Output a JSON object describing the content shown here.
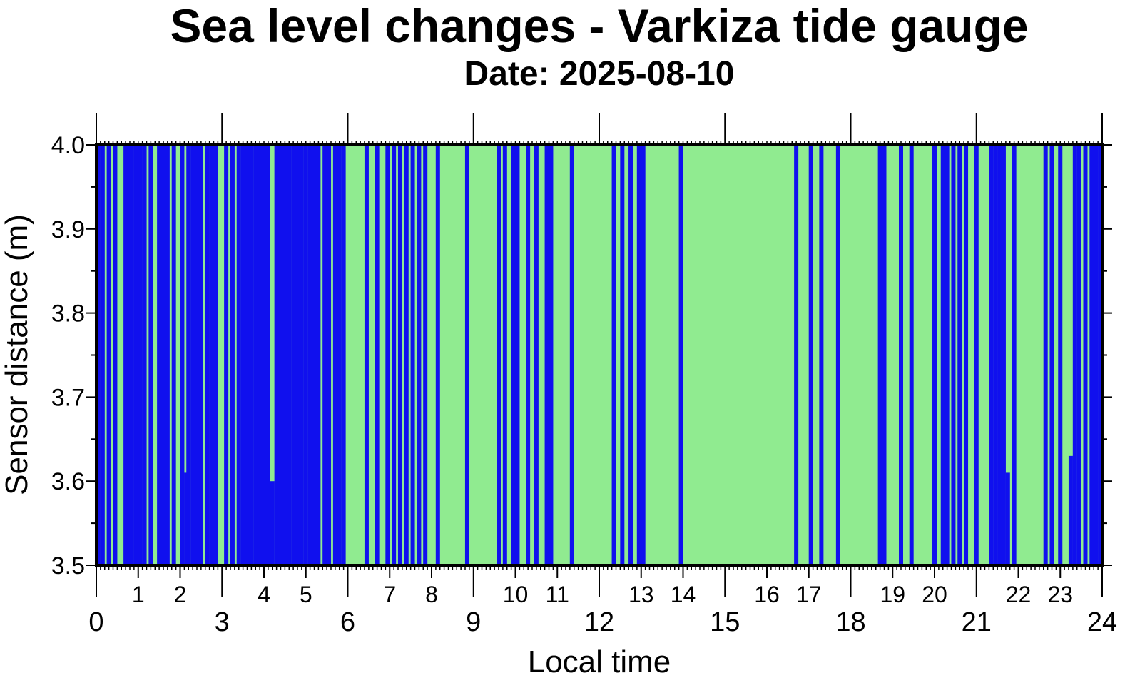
{
  "chart_data": {
    "type": "bar",
    "title": "Sea level changes - Varkiza tide gauge",
    "subtitle": "Date: 2025-08-10",
    "xlabel": "Local time",
    "ylabel": "Sensor distance (m)",
    "xlim": [
      0,
      24
    ],
    "ylim": [
      3.5,
      4.0
    ],
    "y_ticks": [
      "3.5",
      "3.6",
      "3.7",
      "3.8",
      "3.9",
      "4.0"
    ],
    "x_major_ticks": [
      "0",
      "3",
      "6",
      "9",
      "12",
      "15",
      "18",
      "21",
      "24"
    ],
    "x_minor_ticks": [
      "1",
      "2",
      "4",
      "5",
      "7",
      "8",
      "10",
      "11",
      "13",
      "14",
      "16",
      "17",
      "19",
      "20",
      "22",
      "23"
    ],
    "background_color": "#90EB90",
    "series_color": "#1010EE",
    "grid": false,
    "series": [
      {
        "bars": [
          {
            "x": 0.05,
            "y": 4.0
          },
          {
            "x": 0.15,
            "y": 4.0
          },
          {
            "x": 0.3,
            "y": 4.0
          },
          {
            "x": 0.45,
            "y": 4.0
          },
          {
            "x": 0.7,
            "y": 4.0
          },
          {
            "x": 0.75,
            "y": 4.0
          },
          {
            "x": 0.85,
            "y": 4.0
          },
          {
            "x": 0.95,
            "y": 4.0
          },
          {
            "x": 1.05,
            "y": 4.0
          },
          {
            "x": 1.15,
            "y": 4.0
          },
          {
            "x": 1.3,
            "y": 4.0
          },
          {
            "x": 1.5,
            "y": 4.0
          },
          {
            "x": 1.6,
            "y": 4.0
          },
          {
            "x": 1.7,
            "y": 4.0
          },
          {
            "x": 1.85,
            "y": 4.0
          },
          {
            "x": 2.05,
            "y": 4.0
          },
          {
            "x": 2.15,
            "y": 3.61
          },
          {
            "x": 2.2,
            "y": 4.0
          },
          {
            "x": 2.3,
            "y": 4.0
          },
          {
            "x": 2.4,
            "y": 4.0
          },
          {
            "x": 2.5,
            "y": 4.0
          },
          {
            "x": 2.65,
            "y": 4.0
          },
          {
            "x": 2.75,
            "y": 4.0
          },
          {
            "x": 2.85,
            "y": 4.0
          },
          {
            "x": 3.1,
            "y": 4.0
          },
          {
            "x": 3.25,
            "y": 4.0
          },
          {
            "x": 3.4,
            "y": 4.0
          },
          {
            "x": 3.5,
            "y": 4.0
          },
          {
            "x": 3.6,
            "y": 4.0
          },
          {
            "x": 3.7,
            "y": 4.0
          },
          {
            "x": 3.8,
            "y": 4.0
          },
          {
            "x": 3.9,
            "y": 4.0
          },
          {
            "x": 4.0,
            "y": 4.0
          },
          {
            "x": 4.1,
            "y": 4.0
          },
          {
            "x": 4.2,
            "y": 3.6
          },
          {
            "x": 4.3,
            "y": 4.0
          },
          {
            "x": 4.4,
            "y": 4.0
          },
          {
            "x": 4.5,
            "y": 4.0
          },
          {
            "x": 4.6,
            "y": 4.0
          },
          {
            "x": 4.7,
            "y": 4.0
          },
          {
            "x": 4.8,
            "y": 4.0
          },
          {
            "x": 4.9,
            "y": 4.0
          },
          {
            "x": 5.0,
            "y": 4.0
          },
          {
            "x": 5.1,
            "y": 4.0
          },
          {
            "x": 5.2,
            "y": 4.0
          },
          {
            "x": 5.3,
            "y": 4.0
          },
          {
            "x": 5.45,
            "y": 4.0
          },
          {
            "x": 5.55,
            "y": 4.0
          },
          {
            "x": 5.7,
            "y": 4.0
          },
          {
            "x": 5.8,
            "y": 4.0
          },
          {
            "x": 5.9,
            "y": 4.0
          },
          {
            "x": 6.45,
            "y": 4.0
          },
          {
            "x": 6.7,
            "y": 4.0
          },
          {
            "x": 6.95,
            "y": 4.0
          },
          {
            "x": 7.1,
            "y": 4.0
          },
          {
            "x": 7.25,
            "y": 4.0
          },
          {
            "x": 7.4,
            "y": 4.0
          },
          {
            "x": 7.55,
            "y": 4.0
          },
          {
            "x": 7.7,
            "y": 4.0
          },
          {
            "x": 7.85,
            "y": 4.0
          },
          {
            "x": 8.15,
            "y": 4.0
          },
          {
            "x": 8.85,
            "y": 4.0
          },
          {
            "x": 9.6,
            "y": 4.0
          },
          {
            "x": 9.75,
            "y": 4.0
          },
          {
            "x": 9.95,
            "y": 4.0
          },
          {
            "x": 10.05,
            "y": 4.0
          },
          {
            "x": 10.3,
            "y": 4.0
          },
          {
            "x": 10.5,
            "y": 4.0
          },
          {
            "x": 10.75,
            "y": 4.0
          },
          {
            "x": 10.85,
            "y": 4.0
          },
          {
            "x": 11.35,
            "y": 4.0
          },
          {
            "x": 12.35,
            "y": 4.0
          },
          {
            "x": 12.55,
            "y": 4.0
          },
          {
            "x": 12.75,
            "y": 4.0
          },
          {
            "x": 12.95,
            "y": 4.0
          },
          {
            "x": 13.05,
            "y": 4.0
          },
          {
            "x": 13.95,
            "y": 4.0
          },
          {
            "x": 16.7,
            "y": 4.0
          },
          {
            "x": 17.05,
            "y": 4.0
          },
          {
            "x": 17.3,
            "y": 4.0
          },
          {
            "x": 17.7,
            "y": 4.0
          },
          {
            "x": 18.7,
            "y": 4.0
          },
          {
            "x": 18.8,
            "y": 4.0
          },
          {
            "x": 19.2,
            "y": 4.0
          },
          {
            "x": 19.45,
            "y": 4.0
          },
          {
            "x": 20.0,
            "y": 4.0
          },
          {
            "x": 20.2,
            "y": 4.0
          },
          {
            "x": 20.3,
            "y": 4.0
          },
          {
            "x": 20.45,
            "y": 4.0
          },
          {
            "x": 20.6,
            "y": 4.0
          },
          {
            "x": 20.75,
            "y": 4.0
          },
          {
            "x": 21.0,
            "y": 4.0
          },
          {
            "x": 21.35,
            "y": 4.0
          },
          {
            "x": 21.45,
            "y": 4.0
          },
          {
            "x": 21.55,
            "y": 4.0
          },
          {
            "x": 21.65,
            "y": 4.0
          },
          {
            "x": 21.75,
            "y": 3.61
          },
          {
            "x": 21.9,
            "y": 4.0
          },
          {
            "x": 22.65,
            "y": 4.0
          },
          {
            "x": 22.8,
            "y": 4.0
          },
          {
            "x": 23.0,
            "y": 4.0
          },
          {
            "x": 23.25,
            "y": 3.63
          },
          {
            "x": 23.35,
            "y": 4.0
          },
          {
            "x": 23.45,
            "y": 4.0
          },
          {
            "x": 23.6,
            "y": 4.0
          },
          {
            "x": 23.75,
            "y": 4.0
          },
          {
            "x": 23.85,
            "y": 4.0
          },
          {
            "x": 23.95,
            "y": 4.0
          }
        ]
      }
    ]
  }
}
